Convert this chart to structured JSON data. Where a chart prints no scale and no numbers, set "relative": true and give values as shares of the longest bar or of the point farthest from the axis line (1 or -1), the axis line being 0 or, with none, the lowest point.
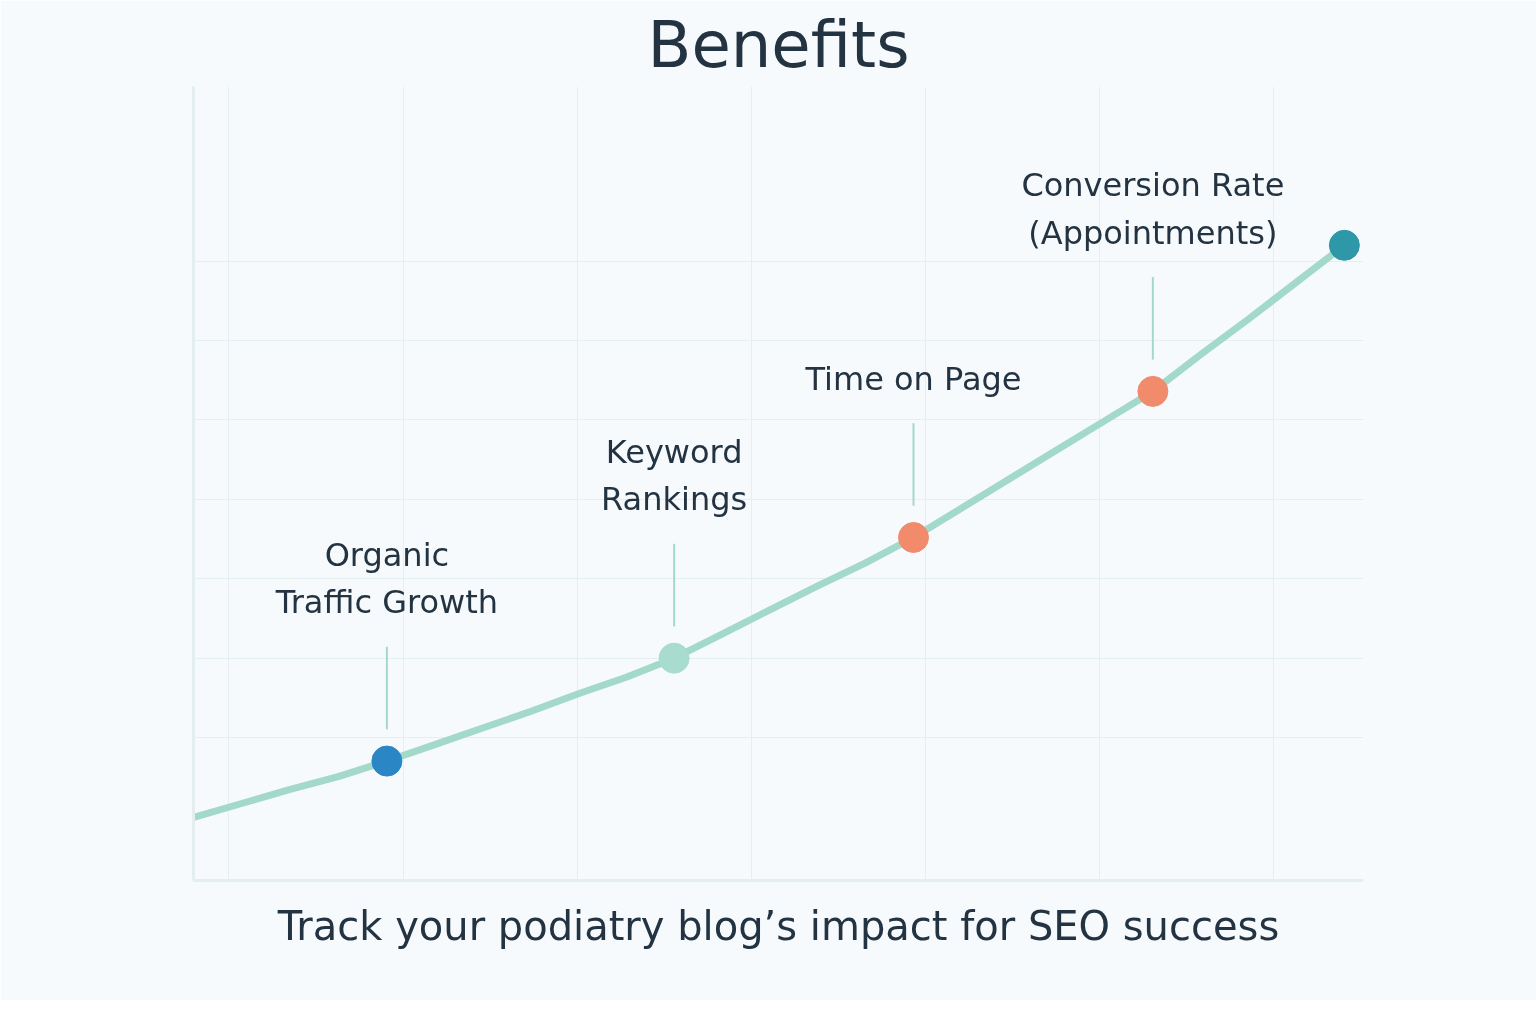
{
  "chart_data": {
    "type": "line",
    "title": "Benefits",
    "subtitle": "Track your podiatry blog’s impact for SEO success",
    "relative": true,
    "grid": true,
    "categories": [
      null,
      null,
      null,
      null,
      null,
      null,
      null,
      null,
      null,
      null,
      null,
      null,
      null,
      null,
      null,
      null,
      null,
      null,
      null,
      null,
      null,
      null,
      null,
      null,
      null
    ],
    "series": [
      {
        "color": "#a3d9c9",
        "colors": [
          null,
          null,
          null,
          null,
          "#2a86c4",
          null,
          null,
          null,
          null,
          null,
          "#a8dccf",
          null,
          null,
          null,
          null,
          "#f28a6c",
          null,
          null,
          null,
          null,
          "#f28a6c",
          null,
          null,
          null,
          "#2e97a8"
        ],
        "values": [
          0.1,
          0.122,
          0.144,
          0.164,
          0.188,
          0.214,
          0.24,
          0.266,
          0.294,
          0.32,
          0.35,
          0.388,
          0.426,
          0.464,
          0.5,
          0.54,
          0.586,
          0.632,
          0.678,
          0.724,
          0.77,
          0.828,
          0.884,
          0.942,
          1.0
        ]
      }
    ],
    "annotations": [
      "Organic\nTraffic Growth",
      "Keyword\nRankings",
      "Time on Page",
      "Conversion Rate\n(Appointments)"
    ]
  }
}
